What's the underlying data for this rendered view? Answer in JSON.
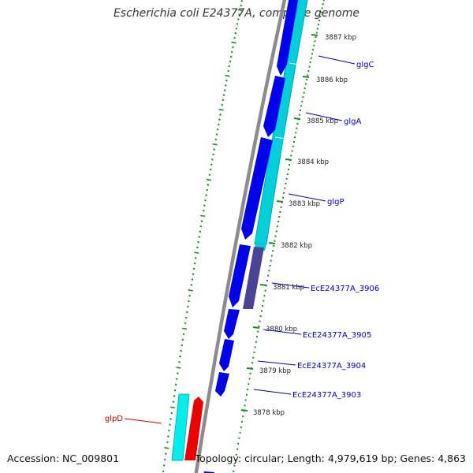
{
  "title": "Escherichia coli E24377A, complete genome",
  "footer": {
    "accession": "Accession: NC_009801",
    "stats": "Topology: circular; Length: 4,979,619 bp; Genes: 4,863"
  },
  "colors": {
    "outer_gc_ticks": "#228b22",
    "backbone": "#8c8c8c",
    "forward_cds": "#0000ee",
    "reverse_cds": "#00d0d8",
    "reverse_cds_dark": "#00a8b0",
    "purple_cds": "#4b4496",
    "red_cds": "#ee0000",
    "cyan_cds": "#00eeee",
    "scale_ticks": "#228b22",
    "gene_label": "#0000cc",
    "gene_label_red": "#dd0000"
  },
  "scale_labels": [
    {
      "kbp": 3887,
      "text": "3887 kbp"
    },
    {
      "kbp": 3886,
      "text": "3886 kbp"
    },
    {
      "kbp": 3885,
      "text": "3885 kbp"
    },
    {
      "kbp": 3884,
      "text": "3884 kbp"
    },
    {
      "kbp": 3883,
      "text": "3883 kbp"
    },
    {
      "kbp": 3882,
      "text": "3882 kbp"
    },
    {
      "kbp": 3881,
      "text": "3881 kbp"
    },
    {
      "kbp": 3880,
      "text": "3880 kbp"
    },
    {
      "kbp": 3879,
      "text": "3879 kbp"
    },
    {
      "kbp": 3878,
      "text": "3878 kbp"
    }
  ],
  "gene_labels": [
    {
      "name": "glgC",
      "color": "gene_label"
    },
    {
      "name": "glgA",
      "color": "gene_label"
    },
    {
      "name": "glgP",
      "color": "gene_label"
    },
    {
      "name": "EcE24377A_3906",
      "color": "gene_label"
    },
    {
      "name": "EcE24377A_3905",
      "color": "gene_label"
    },
    {
      "name": "EcE24377A_3904",
      "color": "gene_label"
    },
    {
      "name": "EcE24377A_3903",
      "color": "gene_label"
    },
    {
      "name": "glpD",
      "color": "gene_label_red"
    }
  ]
}
